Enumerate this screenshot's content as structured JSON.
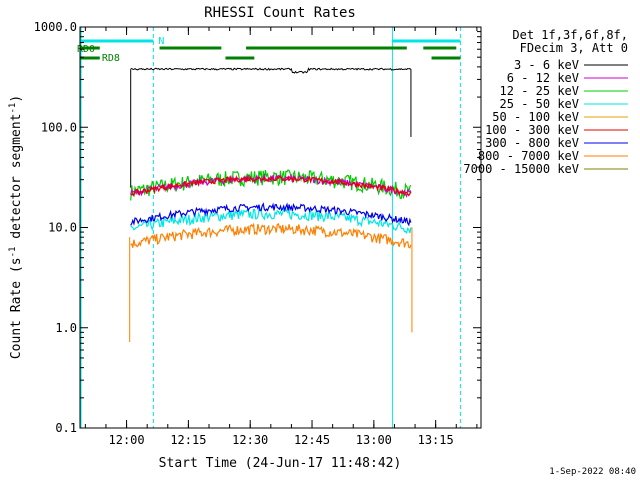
{
  "chart_data": {
    "type": "line",
    "title": "RHESSI Count Rates",
    "xlabel": "Start Time (24-Jun-17 11:48:42)",
    "ylabel_main": "Count Rate (s",
    "ylabel_sup1": "-1",
    "ylabel_mid": " detector segment",
    "ylabel_sup2": "-1",
    "ylabel_end": ")",
    "y_scale": "log",
    "ylim": [
      0.1,
      1000
    ],
    "xlim": [
      "11:48:42",
      "13:26:00"
    ],
    "x_ticks": [
      "12:00",
      "12:15",
      "12:30",
      "12:45",
      "13:00",
      "13:15"
    ],
    "y_ticks": [
      "0.1",
      "1.0",
      "10.0",
      "100.0",
      "1000.0"
    ],
    "legend_header": [
      "Det 1f,3f,6f,8f,",
      "FDecim 3, Att 0"
    ],
    "series": [
      {
        "name": "3 - 6 keV",
        "color": "#000000",
        "level": 380
      },
      {
        "name": "6 - 12 keV",
        "color": "#cc00cc",
        "level": 27
      },
      {
        "name": "12 - 25 keV",
        "color": "#00cc00",
        "level": 28
      },
      {
        "name": "25 - 50 keV",
        "color": "#00e5e5",
        "level": 12
      },
      {
        "name": "50 - 100 keV",
        "color": "#e5a000",
        "level": 0
      },
      {
        "name": "100 - 300 keV",
        "color": "#e50000",
        "level": 27
      },
      {
        "name": "300 - 800 keV",
        "color": "#0000ee",
        "level": 14
      },
      {
        "name": "800 - 7000 keV",
        "color": "#ff7f00",
        "level": 8.5
      },
      {
        "name": "7000 - 15000 keV",
        "color": "#808000",
        "level": 0
      }
    ],
    "annotations": {
      "attenuator": "N",
      "rd0": "RD0",
      "rd8": "RD8"
    },
    "footer_date": "1-Sep-2022 08:40",
    "colors": {
      "cyan": "#00e5e5",
      "green": "#008000"
    }
  }
}
